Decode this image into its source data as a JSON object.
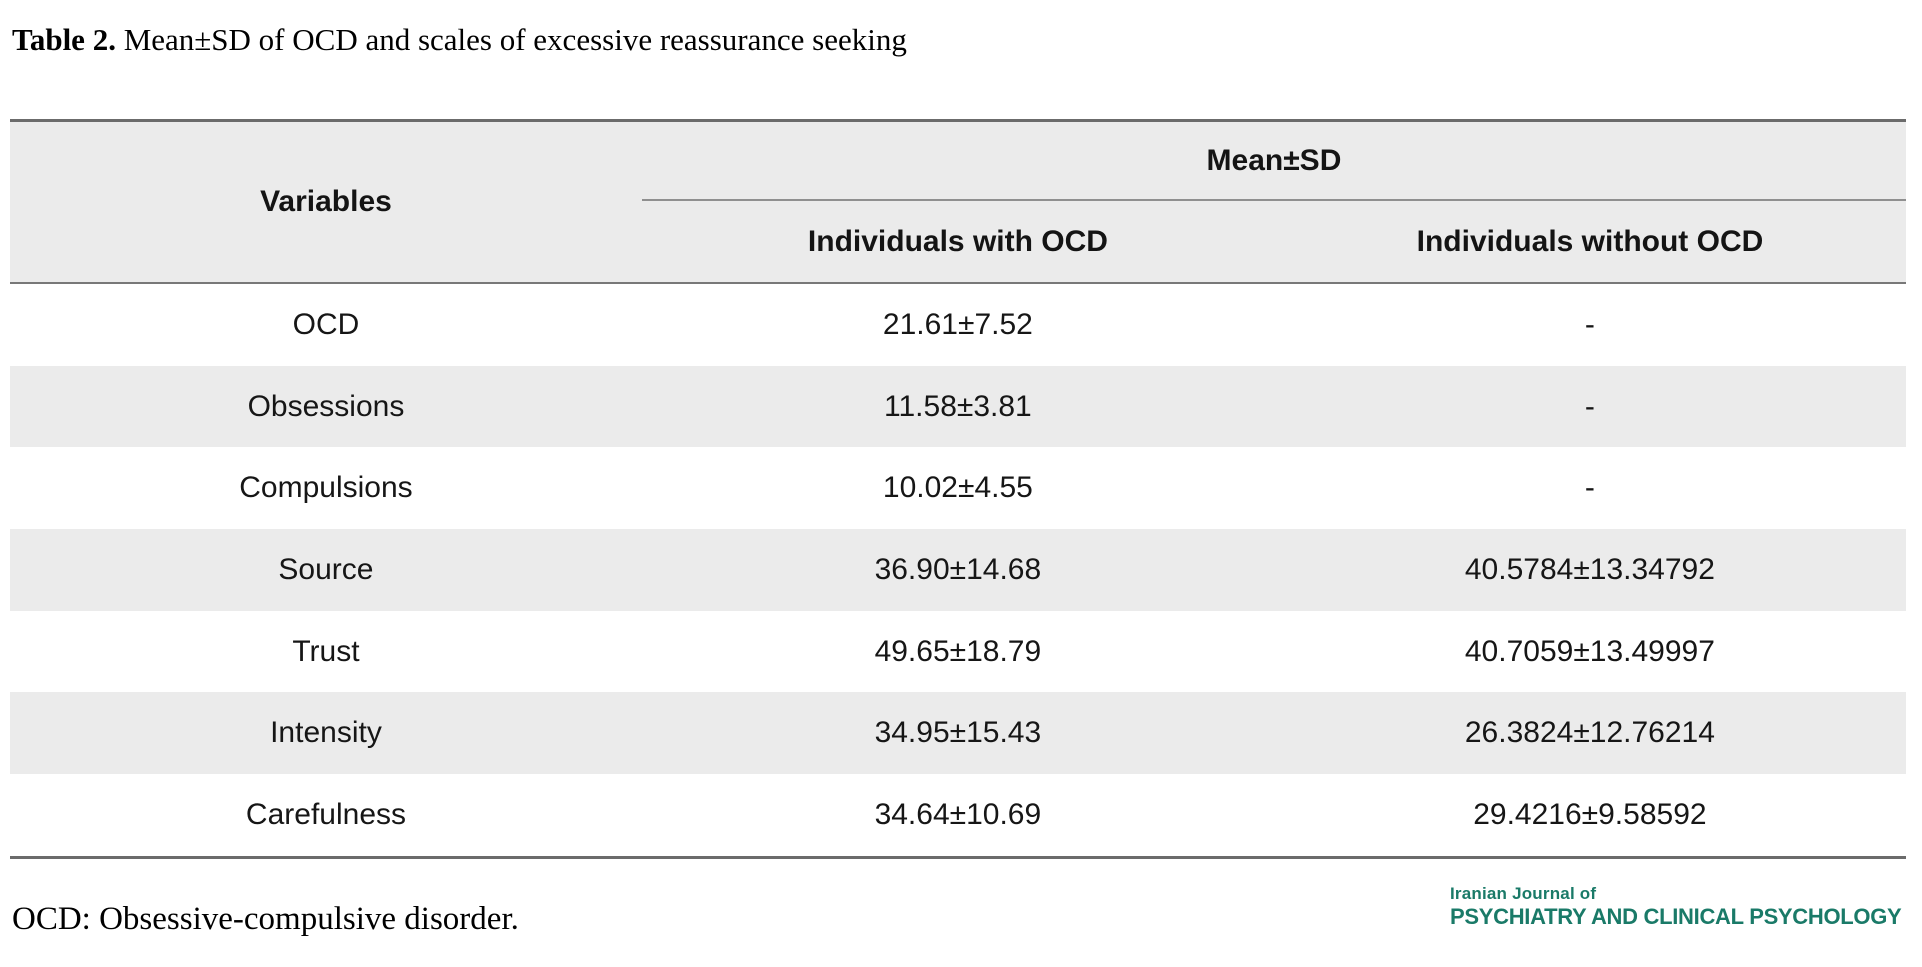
{
  "caption": {
    "label": "Table 2.",
    "text": " Mean±SD of OCD and scales of excessive reassurance seeking"
  },
  "table": {
    "variables_header": "Variables",
    "span_header": "Mean±SD",
    "sub_headers": [
      "Individuals with OCD",
      "Individuals without OCD"
    ],
    "rows": [
      {
        "variable": "OCD",
        "with_ocd": "21.61±7.52",
        "without_ocd": "-"
      },
      {
        "variable": "Obsessions",
        "with_ocd": "11.58±3.81",
        "without_ocd": "-"
      },
      {
        "variable": "Compulsions",
        "with_ocd": "10.02±4.55",
        "without_ocd": "-"
      },
      {
        "variable": "Source",
        "with_ocd": "36.90±14.68",
        "without_ocd": "40.5784±13.34792"
      },
      {
        "variable": "Trust",
        "with_ocd": "49.65±18.79",
        "without_ocd": "40.7059±13.49997"
      },
      {
        "variable": "Intensity",
        "with_ocd": "34.95±15.43",
        "without_ocd": "26.3824±12.76214"
      },
      {
        "variable": "Carefulness",
        "with_ocd": "34.64±10.69",
        "without_ocd": "29.4216±9.58592"
      }
    ]
  },
  "footnote": "OCD: Obsessive-compulsive disorder.",
  "logo": {
    "line1": "Iranian Journal of",
    "line2": "PSYCHIATRY AND CLINICAL PSYCHOLOGY",
    "color": "#1a7a68"
  },
  "colors": {
    "header_bg": "#ebebeb",
    "stripe_bg": "#ebebeb",
    "heavy_rule": "#6b6b6b",
    "light_rule": "#8f8f8f",
    "text": "#161616"
  }
}
